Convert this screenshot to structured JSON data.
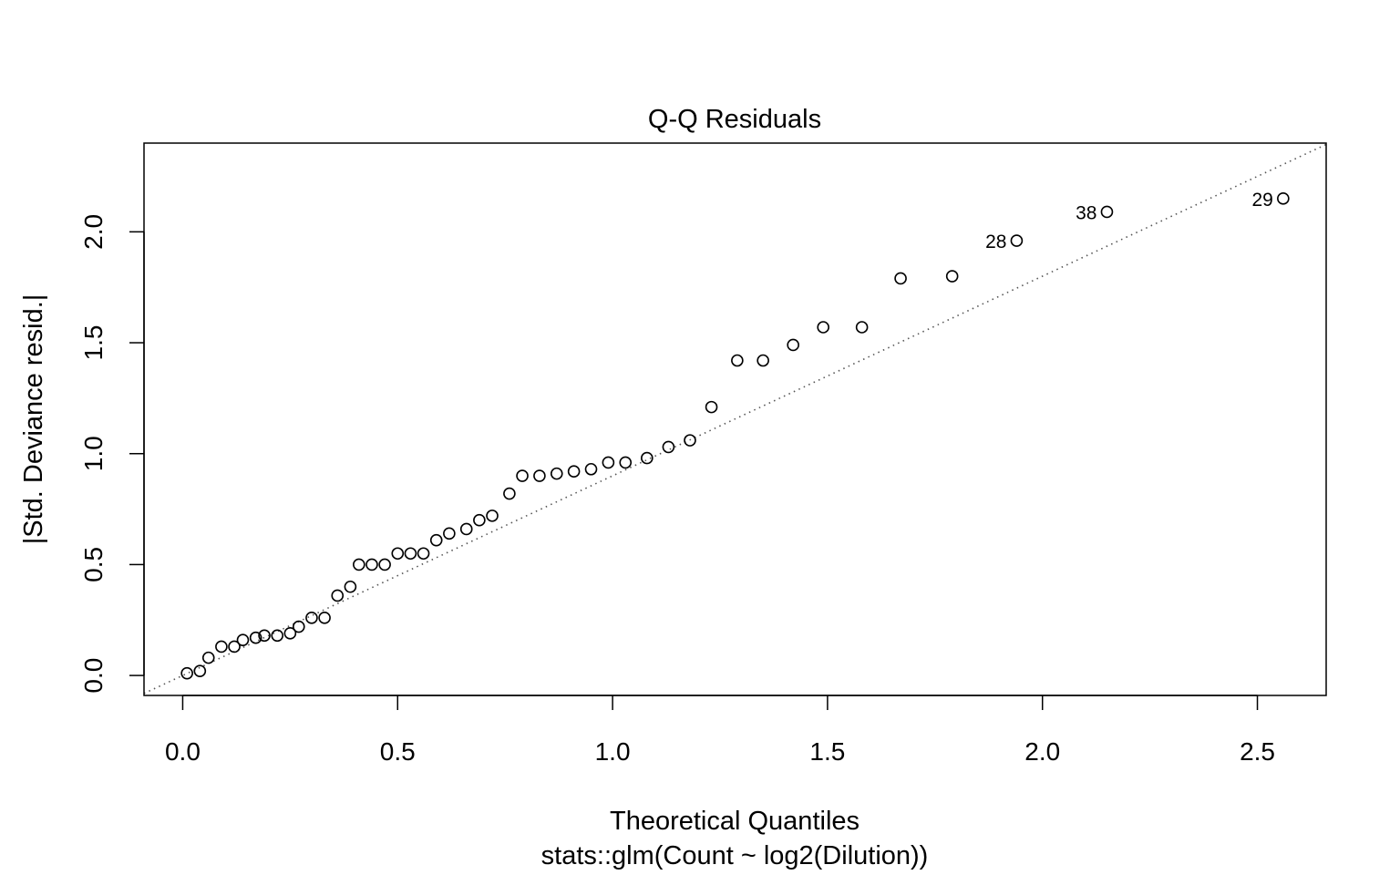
{
  "chart_data": {
    "type": "scatter",
    "title": "Q-Q Residuals",
    "xlabel": "Theoretical Quantiles",
    "sublabel": "stats::glm(Count ~ log2(Dilution))",
    "ylabel": "|Std. Deviance resid.|",
    "xlim": [
      -0.09,
      2.66
    ],
    "ylim": [
      -0.09,
      2.4
    ],
    "xticks": [
      0.0,
      0.5,
      1.0,
      1.5,
      2.0,
      2.5
    ],
    "xtick_labels": [
      "0.0",
      "0.5",
      "1.0",
      "1.5",
      "2.0",
      "2.5"
    ],
    "yticks": [
      0.0,
      0.5,
      1.0,
      1.5,
      2.0
    ],
    "ytick_labels": [
      "0.0",
      "0.5",
      "1.0",
      "1.5",
      "2.0"
    ],
    "grid": false,
    "reference_line": {
      "style": "dotted",
      "intercept": 0.0,
      "slope": 0.9
    },
    "points": [
      {
        "x": 0.01,
        "y": 0.01
      },
      {
        "x": 0.04,
        "y": 0.02
      },
      {
        "x": 0.06,
        "y": 0.08
      },
      {
        "x": 0.09,
        "y": 0.13
      },
      {
        "x": 0.12,
        "y": 0.13
      },
      {
        "x": 0.14,
        "y": 0.16
      },
      {
        "x": 0.17,
        "y": 0.17
      },
      {
        "x": 0.19,
        "y": 0.18
      },
      {
        "x": 0.22,
        "y": 0.18
      },
      {
        "x": 0.25,
        "y": 0.19
      },
      {
        "x": 0.27,
        "y": 0.22
      },
      {
        "x": 0.3,
        "y": 0.26
      },
      {
        "x": 0.33,
        "y": 0.26
      },
      {
        "x": 0.36,
        "y": 0.36
      },
      {
        "x": 0.39,
        "y": 0.4
      },
      {
        "x": 0.41,
        "y": 0.5
      },
      {
        "x": 0.44,
        "y": 0.5
      },
      {
        "x": 0.47,
        "y": 0.5
      },
      {
        "x": 0.5,
        "y": 0.55
      },
      {
        "x": 0.53,
        "y": 0.55
      },
      {
        "x": 0.56,
        "y": 0.55
      },
      {
        "x": 0.59,
        "y": 0.61
      },
      {
        "x": 0.62,
        "y": 0.64
      },
      {
        "x": 0.66,
        "y": 0.66
      },
      {
        "x": 0.69,
        "y": 0.7
      },
      {
        "x": 0.72,
        "y": 0.72
      },
      {
        "x": 0.76,
        "y": 0.82
      },
      {
        "x": 0.79,
        "y": 0.9
      },
      {
        "x": 0.83,
        "y": 0.9
      },
      {
        "x": 0.87,
        "y": 0.91
      },
      {
        "x": 0.91,
        "y": 0.92
      },
      {
        "x": 0.95,
        "y": 0.93
      },
      {
        "x": 0.99,
        "y": 0.96
      },
      {
        "x": 1.03,
        "y": 0.96
      },
      {
        "x": 1.08,
        "y": 0.98
      },
      {
        "x": 1.13,
        "y": 1.03
      },
      {
        "x": 1.18,
        "y": 1.06
      },
      {
        "x": 1.23,
        "y": 1.21
      },
      {
        "x": 1.29,
        "y": 1.42
      },
      {
        "x": 1.35,
        "y": 1.42
      },
      {
        "x": 1.42,
        "y": 1.49
      },
      {
        "x": 1.49,
        "y": 1.57
      },
      {
        "x": 1.58,
        "y": 1.57
      },
      {
        "x": 1.67,
        "y": 1.79
      },
      {
        "x": 1.79,
        "y": 1.8
      },
      {
        "x": 1.94,
        "y": 1.96,
        "label": "28"
      },
      {
        "x": 2.15,
        "y": 2.09,
        "label": "38"
      },
      {
        "x": 2.56,
        "y": 2.15,
        "label": "29"
      }
    ]
  }
}
